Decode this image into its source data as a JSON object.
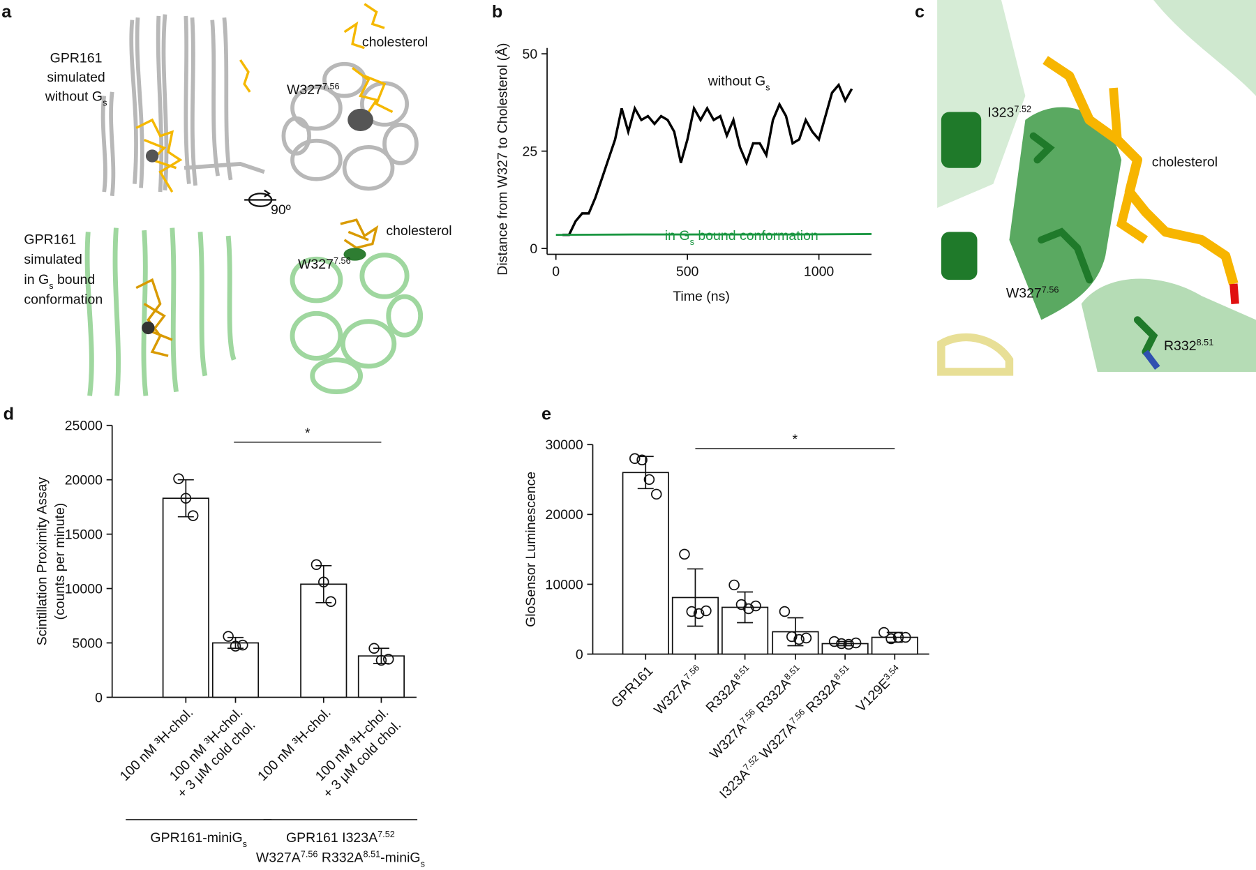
{
  "figure": {
    "a": {
      "letter": "a",
      "top_label": [
        "GPR161",
        "simulated",
        [
          {
            "text": "without G",
            "sub": "s"
          }
        ]
      ],
      "top_cholesterol": "cholesterol",
      "top_residue": [
        {
          "text": "W327",
          "sup": "7.56"
        }
      ],
      "rotation": "90º",
      "bottom_label": [
        "GPR161",
        "simulated",
        [
          {
            "text": "in G",
            "sub": "s"
          },
          {
            "text": " bound"
          }
        ],
        "conformation"
      ],
      "bottom_cholesterol": "cholesterol",
      "bottom_residue": [
        {
          "text": "W327",
          "sup": "7.56"
        }
      ]
    },
    "c": {
      "letter": "c",
      "residue_1": [
        {
          "text": "I323",
          "sup": "7.52"
        }
      ],
      "ligand": "cholesterol",
      "residue_2": [
        {
          "text": "W327",
          "sup": "7.56"
        }
      ],
      "residue_3": [
        {
          "text": "R332",
          "sup": "8.51"
        }
      ]
    }
  },
  "chart_data": [
    {
      "panel": "b",
      "type": "line",
      "xlabel": "Time (ns)",
      "ylabel": "Distance from W327 to Cholesterol (Å)",
      "xlim": [
        -33.5,
        1200
      ],
      "xticks": [
        0,
        500,
        1000
      ],
      "ylim": [
        -1.5,
        51.5
      ],
      "yticks": [
        0,
        25,
        50
      ],
      "series": [
        {
          "name": [
            {
              "text": "without G",
              "sub": "s"
            }
          ],
          "color": "#000000",
          "x": [
            25,
            50,
            75,
            100,
            125,
            150,
            175,
            200,
            225,
            250,
            275,
            300,
            325,
            350,
            375,
            400,
            425,
            450,
            475,
            500,
            525,
            550,
            575,
            600,
            625,
            650,
            675,
            700,
            725,
            750,
            775,
            800,
            825,
            850,
            875,
            900,
            925,
            950,
            975,
            1000,
            1025,
            1050,
            1075,
            1100,
            1125
          ],
          "values": [
            3.5,
            3.5,
            7,
            9,
            9,
            13,
            18,
            23,
            28,
            36,
            30,
            36,
            33,
            34,
            32,
            34,
            33,
            30,
            22,
            28,
            36,
            33,
            36,
            33,
            34,
            29,
            33,
            26,
            22,
            27,
            27,
            24,
            33,
            37,
            34,
            27,
            28,
            33,
            30,
            28,
            34,
            40,
            42,
            38,
            41
          ]
        },
        {
          "name": [
            {
              "text": "in G",
              "sub": "s"
            },
            {
              "text": " bound conformation"
            }
          ],
          "color": "#1a9641",
          "x": [
            0,
            300,
            600,
            900,
            1200
          ],
          "values": [
            3.5,
            3.6,
            3.6,
            3.6,
            3.7
          ]
        }
      ]
    },
    {
      "panel": "d",
      "type": "bar",
      "ylabel": [
        "Scintillation Proximity Assay",
        "(counts per minute)"
      ],
      "categories": [
        [
          "100 nM ³H-chol."
        ],
        [
          "100 nM ³H-chol.",
          "+ 3 μM cold chol."
        ],
        [
          "100 nM ³H-chol."
        ],
        [
          "100 nM ³H-chol.",
          "+ 3 μM cold chol."
        ]
      ],
      "values": [
        18300,
        5000,
        10400,
        3800
      ],
      "errors": [
        1700,
        500,
        1700,
        700
      ],
      "points": [
        [
          20100,
          18300,
          16700
        ],
        [
          5600,
          4700,
          4800
        ],
        [
          12200,
          10600,
          8800
        ],
        [
          4500,
          3400,
          3500
        ]
      ],
      "color": "#ffffff",
      "ylim": [
        0,
        25000
      ],
      "yticks": [
        0,
        5000,
        10000,
        15000,
        20000,
        25000
      ],
      "significance": "*",
      "groups": [
        [
          [
            {
              "text": "GPR161-miniG",
              "sub": "s"
            }
          ]
        ],
        [
          [
            {
              "text": "GPR161 I323A",
              "sup": "7.52"
            }
          ],
          [
            {
              "text": "W327A",
              "sup": "7.56"
            },
            {
              "text": " R332A",
              "sup": "8.51"
            },
            {
              "text": "-miniG",
              "sub": "s"
            }
          ]
        ]
      ]
    },
    {
      "panel": "e",
      "type": "bar",
      "ylabel": "GloSensor Luminescence",
      "categories": [
        "GPR161",
        [
          {
            "text": "W327A",
            "sup": "7.56"
          }
        ],
        [
          {
            "text": "R332A",
            "sup": "8.51"
          }
        ],
        [
          {
            "text": "W327A",
            "sup": "7.56"
          },
          {
            "text": " R332A",
            "sup": "8.51"
          }
        ],
        [
          {
            "text": "I323A",
            "sup": "7.52"
          },
          {
            "text": " W327A",
            "sup": "7.56"
          },
          {
            "text": " R332A",
            "sup": "8.51"
          }
        ],
        [
          {
            "text": "V129E",
            "sup": "3.54"
          }
        ]
      ],
      "values": [
        26000,
        8100,
        6700,
        3200,
        1500,
        2400
      ],
      "errors": [
        2300,
        4100,
        2200,
        2000,
        300,
        700
      ],
      "points": [
        [
          28000,
          27800,
          25000,
          22900
        ],
        [
          14300,
          6100,
          5800,
          6200
        ],
        [
          9900,
          7100,
          6500,
          6900
        ],
        [
          6100,
          2500,
          2100,
          2300
        ],
        [
          1800,
          1500,
          1400,
          1600
        ],
        [
          3100,
          2200,
          2400,
          2400
        ]
      ],
      "color": "#ffffff",
      "ylim": [
        0,
        30000
      ],
      "yticks": [
        0,
        10000,
        20000,
        30000
      ],
      "significance": "*"
    }
  ]
}
